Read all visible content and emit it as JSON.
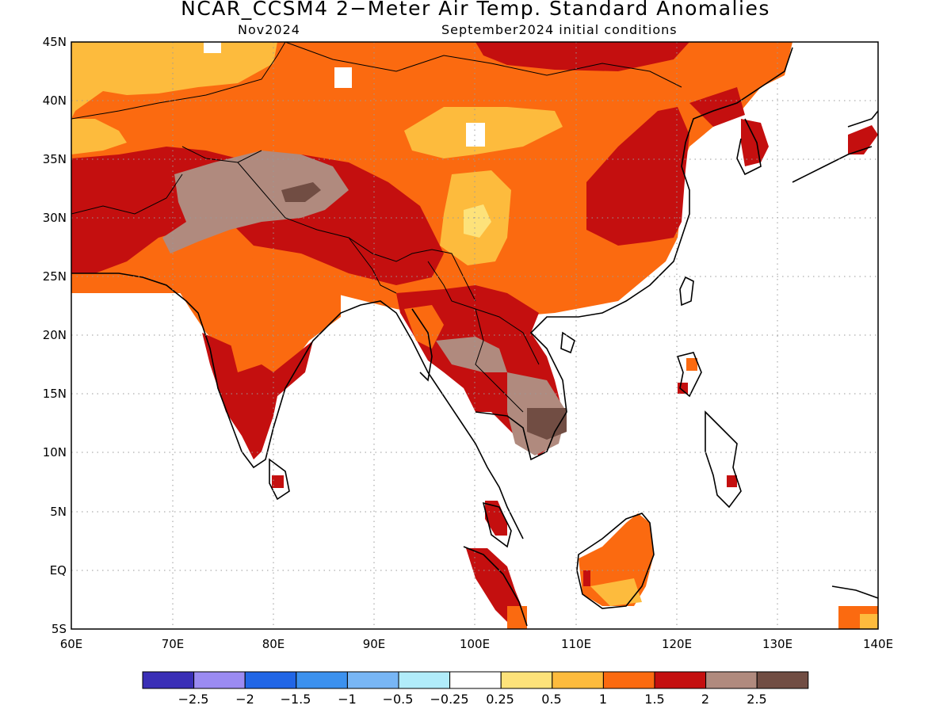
{
  "title": "NCAR_CCSM4 2−Meter Air Temp. Standard Anomalies",
  "subtitle_left": "Nov2024",
  "subtitle_right": "September2024 initial conditions",
  "axes": {
    "lat_labels": [
      "45N",
      "40N",
      "35N",
      "30N",
      "25N",
      "20N",
      "15N",
      "10N",
      "5N",
      "EQ",
      "5S"
    ],
    "lon_labels": [
      "60E",
      "70E",
      "80E",
      "90E",
      "100E",
      "110E",
      "120E",
      "130E",
      "140E"
    ],
    "lon_range": [
      60,
      140
    ],
    "lat_range": [
      -5,
      45
    ],
    "grid": "dotted"
  },
  "colorbar": {
    "colors": [
      "#3a2fb6",
      "#9b8bf2",
      "#2166e6",
      "#3c91ee",
      "#78b6f5",
      "#b1ecfa",
      "#ffffff",
      "#fde27a",
      "#fdbb3d",
      "#fb6a10",
      "#c40f0f",
      "#b08a7e",
      "#714d43"
    ],
    "labels": [
      "−2.5",
      "−2",
      "−1.5",
      "−1",
      "−0.5",
      "−0.25",
      "0.25",
      "0.5",
      "1",
      "1.5",
      "2",
      "2.5"
    ]
  },
  "map_regions": [
    {
      "name": "mongolia-north-china",
      "category": "1.5",
      "color": "#fb6a10"
    },
    {
      "name": "central-asia-west",
      "category": "1",
      "color": "#fdbb3d"
    },
    {
      "name": "tibetan-plateau-central",
      "category": "0.5",
      "color": "#fde27a"
    },
    {
      "name": "north-india-himalaya",
      "category": "2.5",
      "color": "#b08a7e"
    },
    {
      "name": "india-south",
      "category": "2",
      "color": "#c40f0f"
    },
    {
      "name": "southeast-asia-mainland",
      "category": "2",
      "color": "#c40f0f"
    },
    {
      "name": "cambodia-vietnam-south",
      "category": "2.5",
      "color": "#b08a7e"
    },
    {
      "name": "borneo",
      "category": "1.5",
      "color": "#fb6a10"
    },
    {
      "name": "east-china",
      "category": "2",
      "color": "#c40f0f"
    }
  ]
}
